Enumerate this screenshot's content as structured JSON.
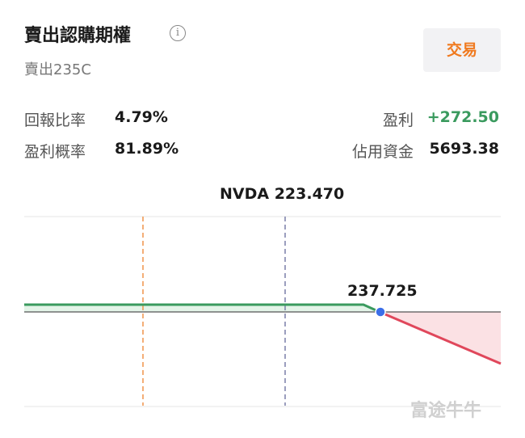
{
  "header": {
    "title": "賣出認購期權",
    "subtitle": "賣出235C",
    "button": "交易"
  },
  "stats": {
    "return_ratio": {
      "label": "回報比率",
      "value": "4.79%"
    },
    "profit": {
      "label": "盈利",
      "value": "+272.50"
    },
    "win_probability": {
      "label": "盈利概率",
      "value": "81.89%"
    },
    "capital": {
      "label": "佔用資金",
      "value": "5693.38"
    }
  },
  "chart": {
    "price_label": "NVDA 223.470",
    "breakeven_label": "237.725"
  },
  "watermark": "富途牛牛"
}
